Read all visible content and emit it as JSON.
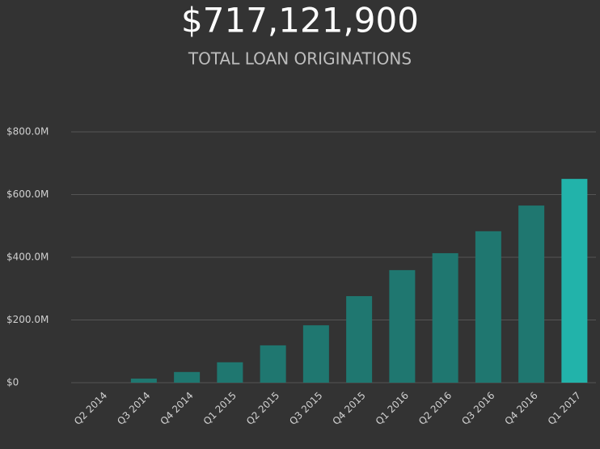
{
  "chart_data": {
    "type": "bar",
    "title": "$717,121,900",
    "subtitle": "TOTAL LOAN ORIGINATIONS",
    "categories": [
      "Q2 2014",
      "Q3 2014",
      "Q4 2014",
      "Q1 2015",
      "Q2 2015",
      "Q3 2015",
      "Q4 2015",
      "Q1 2016",
      "Q2 2016",
      "Q3 2016",
      "Q4 2016",
      "Q1 2017"
    ],
    "values": [
      0,
      13000000,
      34000000,
      65000000,
      119000000,
      183000000,
      276000000,
      359000000,
      413000000,
      483000000,
      565000000,
      650000000
    ],
    "colors": [
      "#1f7770",
      "#1f7770",
      "#1f7770",
      "#1f7770",
      "#1f7770",
      "#1f7770",
      "#1f7770",
      "#1f7770",
      "#1f7770",
      "#1f7770",
      "#1f7770",
      "#22b3aa"
    ],
    "ylim": [
      0,
      800000000
    ],
    "yticks": [
      {
        "value": 0,
        "label": "$0"
      },
      {
        "value": 200000000,
        "label": "$200.0M"
      },
      {
        "value": 400000000,
        "label": "$400.0M"
      },
      {
        "value": 600000000,
        "label": "$600.0M"
      },
      {
        "value": 800000000,
        "label": "$800.0M"
      }
    ],
    "grid": true
  }
}
